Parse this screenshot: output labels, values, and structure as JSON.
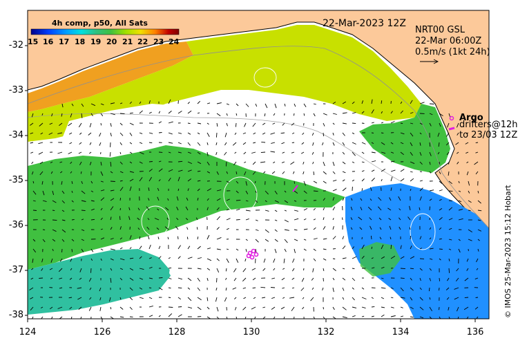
{
  "map": {
    "colorbar_title": "4h comp, p50, All Sats",
    "colorbar_ticks": [
      "15",
      "16",
      "17",
      "18",
      "19",
      "20",
      "21",
      "22",
      "23",
      "24"
    ],
    "colorbar_colors": [
      "#00008b",
      "#0040ff",
      "#00a0ff",
      "#00e0e0",
      "#30c080",
      "#40c040",
      "#a0e000",
      "#f0e000",
      "#ff8000",
      "#c00000",
      "#800000"
    ],
    "date_label": "22-Mar-2023 12Z",
    "gsl_lines": [
      "NRT00 GSL",
      "22-Mar 06:00Z",
      "0.5m/s (1kt 24h)"
    ],
    "legend_argo": "Argo",
    "legend_drifters": [
      "drifters@12h",
      "to 23/03 12Z"
    ],
    "credit": "© IMOS 25-Mar-2023 15:12 Hobart",
    "y_ticks": [
      "-32",
      "-33",
      "-34",
      "-35",
      "-36",
      "-37",
      "-38"
    ],
    "x_ticks": [
      "124",
      "126",
      "128",
      "130",
      "132",
      "134",
      "136"
    ],
    "colors": {
      "land": "#fcc99a",
      "ocean_none": "#ffffff",
      "warm": "#f0a020",
      "yellow_green": "#c8e000",
      "mid_green": "#40c040",
      "teal": "#30c0a0",
      "blue": "#2090ff",
      "magenta": "#e020e0"
    }
  }
}
